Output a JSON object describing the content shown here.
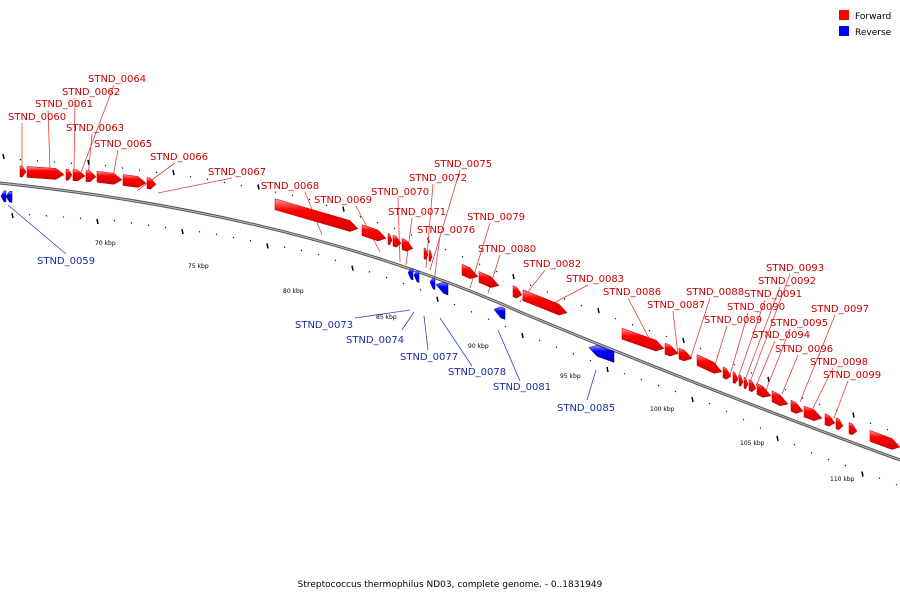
{
  "caption": "Streptococcus thermophilus ND03, complete genome. - 0..1831949",
  "legend": {
    "placement": "top-right",
    "items": [
      {
        "label": "Forward",
        "color": "#ff0000"
      },
      {
        "label": "Reverse",
        "color": "#0000ff"
      }
    ]
  },
  "colors": {
    "forward": "#ff0000",
    "reverse": "#0000ff",
    "backbone": "#808080",
    "forward_label": "#cc0000",
    "reverse_label": "#1f2aa8"
  },
  "scale_labels": [
    "70 kbp",
    "75 kbp",
    "80 kbp",
    "85 kbp",
    "90 kbp",
    "95 kbp",
    "100 kbp",
    "105 kbp",
    "110 kbp"
  ],
  "genes_forward": [
    "STND_0060",
    "STND_0061",
    "STND_0062",
    "STND_0064",
    "STND_0063",
    "STND_0065",
    "STND_0066",
    "STND_0067",
    "STND_0068",
    "STND_0069",
    "STND_0070",
    "STND_0071",
    "STND_0072",
    "STND_0075",
    "STND_0076",
    "STND_0079",
    "STND_0080",
    "STND_0082",
    "STND_0083",
    "STND_0086",
    "STND_0087",
    "STND_0088",
    "STND_0089",
    "STND_0090",
    "STND_0091",
    "STND_0092",
    "STND_0093",
    "STND_0094",
    "STND_0095",
    "STND_0096",
    "STND_0097",
    "STND_0098",
    "STND_0099"
  ],
  "genes_reverse": [
    "STND_0059",
    "STND_0073",
    "STND_0074",
    "STND_0077",
    "STND_0078",
    "STND_0081",
    "STND_0085"
  ]
}
